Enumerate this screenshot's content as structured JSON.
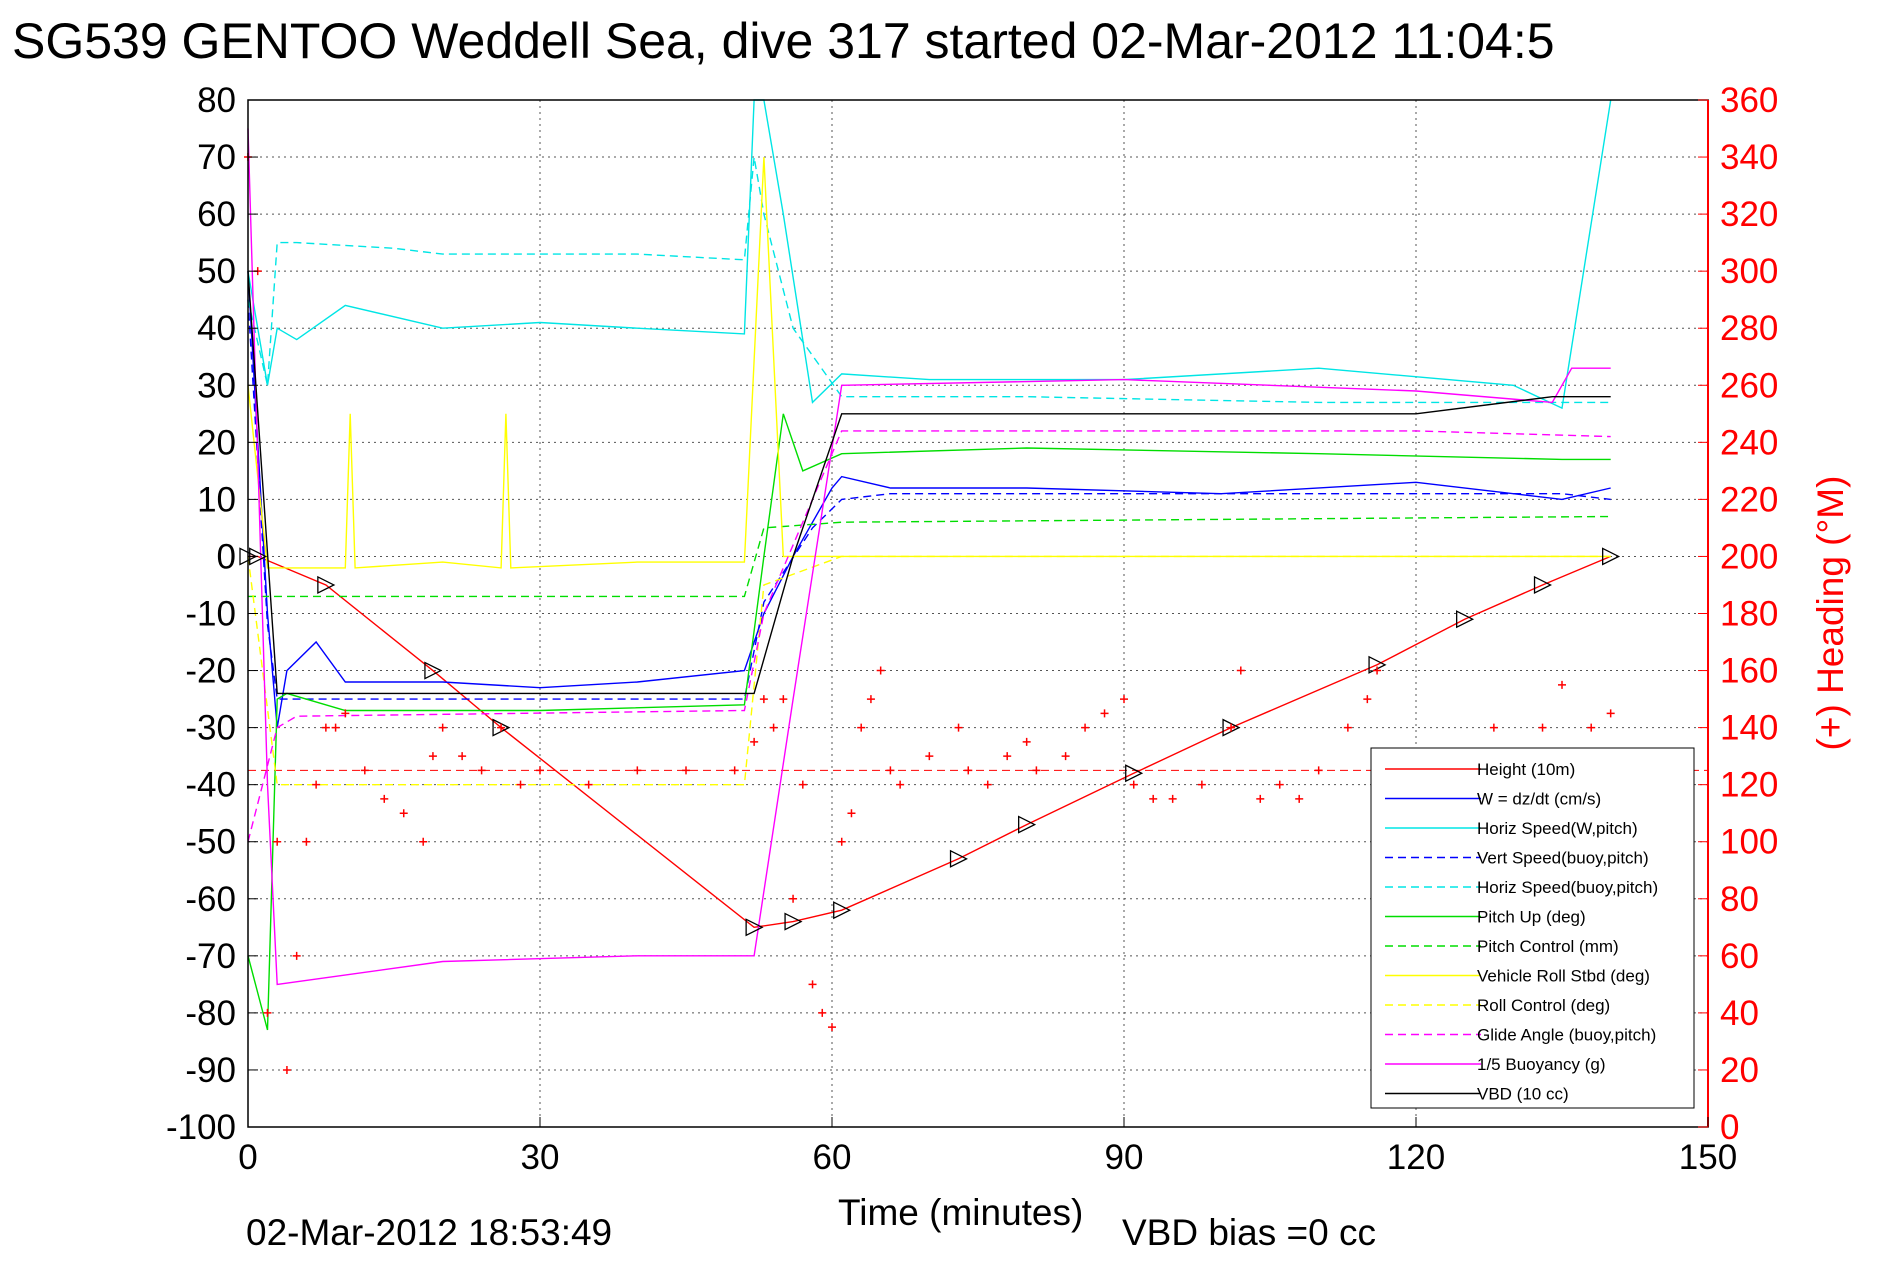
{
  "chart_data": {
    "type": "line",
    "title": "SG539 GENTOO Weddell Sea, dive 317 started 02-Mar-2012 11:04:5",
    "xlabel": "Time (minutes)",
    "ylabel": "",
    "y2label": "(+) Heading (°M)",
    "xlim": [
      0,
      150
    ],
    "ylim": [
      -100,
      80
    ],
    "y2lim": [
      0,
      360
    ],
    "xticks": [
      0,
      30,
      60,
      90,
      120,
      150
    ],
    "yticks": [
      80,
      70,
      60,
      50,
      40,
      30,
      20,
      10,
      0,
      -10,
      -20,
      -30,
      -40,
      -50,
      -60,
      -70,
      -80,
      -90,
      -100
    ],
    "y2ticks": [
      360,
      340,
      320,
      300,
      280,
      260,
      240,
      220,
      200,
      180,
      160,
      140,
      120,
      100,
      80,
      60,
      40,
      20,
      0
    ],
    "grid": true,
    "legend_position": "bottom-right",
    "timestamp": "02-Mar-2012 18:53:49",
    "vbd_bias": "VBD bias =0 cc",
    "series": [
      {
        "name": "Height (10m)",
        "color": "#ff0000",
        "style": "solid",
        "x": [
          0,
          1,
          8,
          19,
          26,
          52,
          56,
          61,
          73,
          80,
          91,
          101,
          116,
          125,
          133,
          140
        ],
        "y": [
          0,
          0,
          -5,
          -20,
          -30,
          -65,
          -64,
          -62,
          -53,
          -47,
          -38,
          -30,
          -19,
          -11,
          -5,
          0
        ]
      },
      {
        "name": "W = dz/dt (cm/s)",
        "color": "#0000ff",
        "style": "solid",
        "x": [
          0,
          2,
          3,
          4,
          7,
          10,
          20,
          30,
          40,
          51,
          53,
          56,
          60,
          61,
          66,
          80,
          100,
          120,
          135,
          140
        ],
        "y": [
          50,
          -10,
          -30,
          -20,
          -15,
          -22,
          -22,
          -23,
          -22,
          -20,
          -10,
          0,
          12,
          14,
          12,
          12,
          11,
          13,
          10,
          12
        ]
      },
      {
        "name": "Horiz Speed(W,pitch)",
        "color": "#00e5e5",
        "style": "solid",
        "x": [
          0,
          2,
          3,
          5,
          10,
          20,
          30,
          40,
          51,
          52,
          53,
          55,
          58,
          61,
          70,
          90,
          110,
          130,
          135,
          140
        ],
        "y": [
          50,
          30,
          40,
          38,
          44,
          40,
          41,
          40,
          39,
          80,
          80,
          60,
          27,
          32,
          31,
          31,
          33,
          30,
          26,
          80
        ]
      },
      {
        "name": "Vert Speed(buoy,pitch)",
        "color": "#0000ff",
        "style": "dashed",
        "x": [
          0,
          2,
          3,
          5,
          20,
          51,
          53,
          58,
          61,
          66,
          100,
          135,
          140
        ],
        "y": [
          45,
          -12,
          -25,
          -25,
          -25,
          -25,
          -8,
          5,
          10,
          11,
          11,
          11,
          10
        ]
      },
      {
        "name": "Horiz Speed(buoy,pitch)",
        "color": "#00e5e5",
        "style": "dashed",
        "x": [
          0,
          2,
          3,
          5,
          15,
          20,
          30,
          40,
          51,
          52,
          53,
          56,
          61,
          80,
          110,
          135,
          140
        ],
        "y": [
          45,
          30,
          55,
          55,
          54,
          53,
          53,
          53,
          52,
          70,
          60,
          40,
          28,
          28,
          27,
          27,
          27
        ]
      },
      {
        "name": "Pitch Up (deg)",
        "color": "#00dd00",
        "style": "solid",
        "x": [
          0,
          2,
          3,
          4,
          10,
          30,
          51,
          53,
          55,
          57,
          61,
          80,
          110,
          135,
          140
        ],
        "y": [
          -70,
          -83,
          -25,
          -24,
          -27,
          -27,
          -26,
          0,
          25,
          15,
          18,
          19,
          18,
          17,
          17
        ]
      },
      {
        "name": "Pitch Control (mm)",
        "color": "#00dd00",
        "style": "dashed",
        "x": [
          0,
          3,
          5,
          51,
          53,
          61,
          140
        ],
        "y": [
          -7,
          -7,
          -7,
          -7,
          5,
          6,
          7
        ]
      },
      {
        "name": "Vehicle Roll Stbd (deg)",
        "color": "#ffff00",
        "style": "solid",
        "x": [
          0,
          2,
          10,
          10.5,
          11,
          20,
          26,
          26.5,
          27,
          40,
          51,
          53,
          55,
          60,
          63,
          100,
          140
        ],
        "y": [
          30,
          -2,
          -2,
          25,
          -2,
          -1,
          -2,
          25,
          -2,
          -1,
          -1,
          70,
          0,
          0,
          0,
          0,
          0
        ]
      },
      {
        "name": "Roll Control (deg)",
        "color": "#ffff00",
        "style": "dashed",
        "x": [
          0,
          3,
          5,
          51,
          53,
          61,
          140
        ],
        "y": [
          0,
          -40,
          -40,
          -40,
          -5,
          0,
          0
        ]
      },
      {
        "name": "Glide Angle (buoy,pitch)",
        "color": "#ff00ff",
        "style": "dashed",
        "x": [
          0,
          3,
          5,
          51,
          53,
          61,
          90,
          120,
          140
        ],
        "y": [
          -50,
          -30,
          -28,
          -27,
          -10,
          22,
          22,
          22,
          21
        ]
      },
      {
        "name": "1/5 Buoyancy (g)",
        "color": "#ff00ff",
        "style": "solid",
        "x": [
          0,
          2,
          3,
          20,
          40,
          52,
          56,
          61,
          90,
          120,
          134,
          136,
          140
        ],
        "y": [
          75,
          -40,
          -75,
          -71,
          -70,
          -70,
          -25,
          30,
          31,
          29,
          27,
          33,
          33
        ]
      },
      {
        "name": "VBD (10 cc)",
        "color": "#000000",
        "style": "solid",
        "x": [
          0,
          3,
          5,
          50,
          52,
          56,
          60,
          61,
          66,
          120,
          134,
          140
        ],
        "y": [
          50,
          -24,
          -24,
          -24,
          -24,
          0,
          20,
          25,
          25,
          25,
          28,
          28
        ]
      }
    ],
    "heading": {
      "name": "(+) Heading (°M)",
      "axis": "right",
      "marker": "+",
      "color": "#ff0000",
      "reference": 125,
      "x": [
        0,
        1,
        2,
        3,
        4,
        5,
        6,
        7,
        8,
        9,
        10,
        12,
        14,
        16,
        18,
        19,
        20,
        22,
        24,
        26,
        28,
        30,
        35,
        40,
        45,
        50,
        52,
        53,
        54,
        55,
        56,
        57,
        58,
        59,
        60,
        61,
        62,
        63,
        64,
        65,
        66,
        67,
        70,
        73,
        74,
        76,
        78,
        80,
        81,
        84,
        86,
        88,
        90,
        91,
        93,
        95,
        98,
        101,
        102,
        104,
        106,
        108,
        110,
        113,
        115,
        116,
        117,
        120,
        125,
        128,
        130,
        133,
        135,
        138,
        140
      ],
      "y": [
        340,
        300,
        40,
        100,
        20,
        60,
        100,
        120,
        140,
        140,
        145,
        125,
        115,
        110,
        100,
        130,
        140,
        130,
        125,
        140,
        120,
        125,
        120,
        125,
        125,
        125,
        135,
        150,
        140,
        150,
        80,
        120,
        50,
        40,
        35,
        100,
        110,
        140,
        150,
        160,
        125,
        120,
        130,
        140,
        125,
        120,
        130,
        135,
        125,
        130,
        140,
        145,
        150,
        120,
        115,
        115,
        120,
        140,
        160,
        115,
        120,
        115,
        125,
        140,
        150,
        160,
        130,
        130,
        130,
        140,
        130,
        140,
        155,
        140,
        145
      ]
    }
  }
}
